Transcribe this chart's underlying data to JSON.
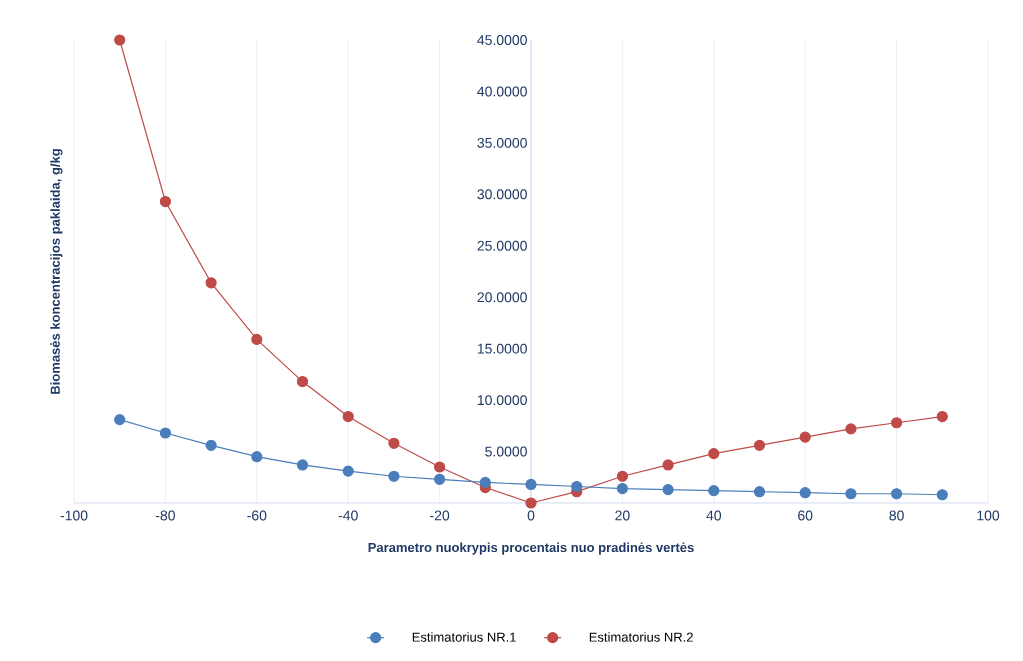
{
  "chart_data": {
    "type": "line",
    "xlabel": "Parametro nuokrypis procentais nuo pradinės vertės",
    "ylabel": "Biomasės koncentracijos paklaida, g/kg",
    "x": [
      -90,
      -80,
      -70,
      -60,
      -50,
      -40,
      -30,
      -20,
      -10,
      0,
      10,
      20,
      30,
      40,
      50,
      60,
      70,
      80,
      90
    ],
    "series": [
      {
        "name": "Estimatorius NR.1",
        "color": "#4a7ebb",
        "values": [
          8.1,
          6.8,
          5.6,
          4.5,
          3.7,
          3.1,
          2.6,
          2.3,
          2.0,
          1.8,
          1.6,
          1.4,
          1.3,
          1.2,
          1.1,
          1.0,
          0.9,
          0.9,
          0.8
        ]
      },
      {
        "name": "Estimatorius NR.2",
        "color": "#be4b48",
        "values": [
          45.0,
          29.3,
          21.4,
          15.9,
          11.8,
          8.4,
          5.8,
          3.5,
          1.5,
          0.0,
          1.1,
          2.6,
          3.7,
          4.8,
          5.6,
          6.4,
          7.2,
          7.8,
          8.4
        ]
      }
    ],
    "xlim": [
      -100,
      100
    ],
    "xticks": [
      -100,
      -80,
      -60,
      -40,
      -20,
      0,
      20,
      40,
      60,
      80,
      100
    ],
    "ylim": [
      0,
      45
    ],
    "yticks": [
      {
        "value": 5,
        "label": "5.0000"
      },
      {
        "value": 10,
        "label": "10.0000"
      },
      {
        "value": 15,
        "label": "15.0000"
      },
      {
        "value": 20,
        "label": "20.0000"
      },
      {
        "value": 25,
        "label": "25.0000"
      },
      {
        "value": 30,
        "label": "30.0000"
      },
      {
        "value": 35,
        "label": "35.0000"
      },
      {
        "value": 40,
        "label": "40.0000"
      },
      {
        "value": 45,
        "label": "45.0000"
      }
    ],
    "grid": "x",
    "legend": "bottom",
    "marker": "circle",
    "line_style": "solid"
  }
}
